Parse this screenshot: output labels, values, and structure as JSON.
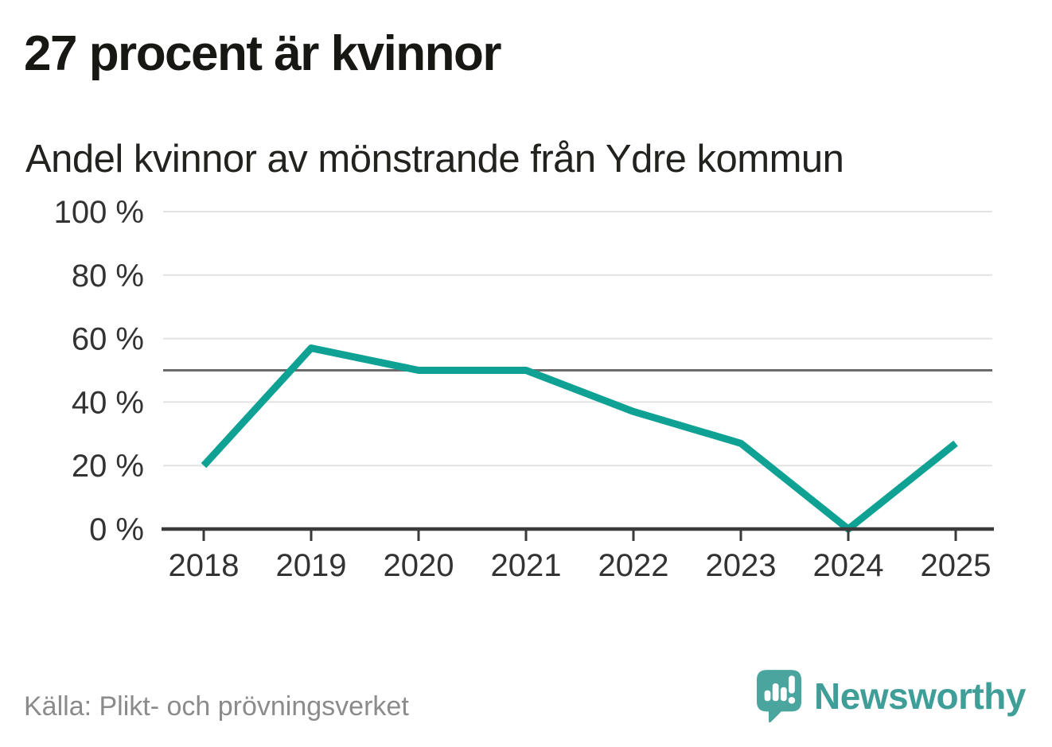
{
  "header": {
    "title": "27 procent är kvinnor",
    "subtitle": "Andel kvinnor av mönstrande från Ydre kommun"
  },
  "chart_data": {
    "type": "line",
    "x": [
      "2018",
      "2019",
      "2020",
      "2021",
      "2022",
      "2023",
      "2024",
      "2025"
    ],
    "values": [
      20,
      57,
      50,
      50,
      37,
      27,
      0,
      27
    ],
    "unit": "%",
    "title": "Andel kvinnor av mönstrande från Ydre kommun",
    "xlabel": "",
    "ylabel": "",
    "ylim": [
      0,
      100
    ],
    "yticks": [
      0,
      20,
      40,
      60,
      80,
      100
    ],
    "ytick_labels": [
      "0 %",
      "20 %",
      "40 %",
      "60 %",
      "80 %",
      "100 %"
    ],
    "reference_line": 50,
    "grid": true,
    "legend": "none"
  },
  "footer": {
    "source": "Källa: Plikt- och prövningsverket"
  },
  "logo": {
    "text": "Newsworthy",
    "icon": "newsworthy-speech-bubble-bar-chart-icon"
  },
  "colors": {
    "line": "#0fa294",
    "gridline": "#e2e2e2",
    "reference_line": "#6b6b6b",
    "axis": "#3a3a3a",
    "tick_label": "#333333",
    "logo_icon": "#4aa59e",
    "logo_text": "#3f9f98"
  }
}
